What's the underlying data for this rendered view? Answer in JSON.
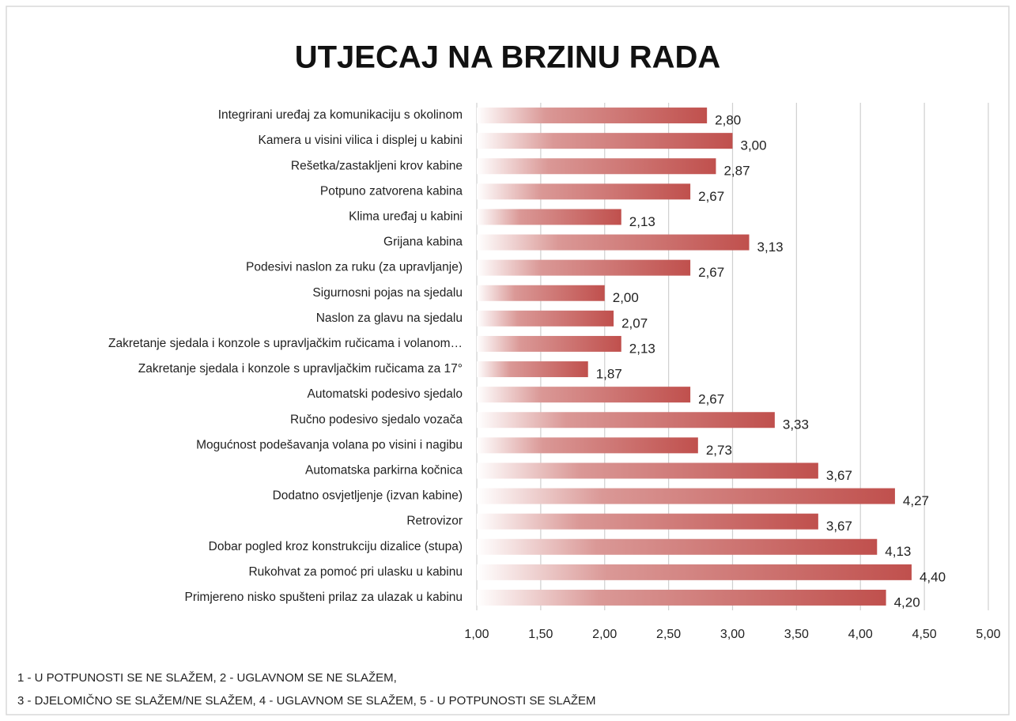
{
  "chart_data": {
    "type": "bar",
    "orientation": "horizontal",
    "title": "UTJECAJ NA BRZINU RADA",
    "categories": [
      "Integrirani uređaj za komunikaciju s okolinom",
      "Kamera u visini vilica i displej u kabini",
      "Rešetka/zastakljeni krov kabine",
      "Potpuno zatvorena kabina",
      "Klima uređaj u kabini",
      "Grijana kabina",
      "Podesivi naslon za ruku (za upravljanje)",
      "Sigurnosni pojas na sjedalu",
      "Naslon za glavu na sjedalu",
      "Zakretanje sjedala i konzole s upravljačkim ručicama i volanom…",
      "Zakretanje sjedala i konzole s upravljačkim ručicama za 17°",
      "Automatski podesivo sjedalo",
      "Ručno podesivo sjedalo vozača",
      "Mogućnost podešavanja volana po visini i nagibu",
      "Automatska parkirna kočnica",
      "Dodatno osvjetljenje (izvan kabine)",
      "Retrovizor",
      "Dobar pogled kroz konstrukciju dizalice (stupa)",
      "Rukohvat za pomoć pri ulasku u kabinu",
      "Primjereno nisko spušteni prilaz za ulazak u kabinu"
    ],
    "values": [
      2.8,
      3.0,
      2.87,
      2.67,
      2.13,
      3.13,
      2.67,
      2.0,
      2.07,
      2.13,
      1.87,
      2.67,
      3.33,
      2.73,
      3.67,
      4.27,
      3.67,
      4.13,
      4.4,
      4.2
    ],
    "value_labels": [
      "2,80",
      "3,00",
      "2,87",
      "2,67",
      "2,13",
      "3,13",
      "2,67",
      "2,00",
      "2,07",
      "2,13",
      "1,87",
      "2,67",
      "3,33",
      "2,73",
      "3,67",
      "4,27",
      "3,67",
      "4,13",
      "4,40",
      "4,20"
    ],
    "color": "#c0504d",
    "xlim": [
      1,
      5
    ],
    "xticks": [
      {
        "value": 1,
        "label": "1,00"
      },
      {
        "value": 1.5,
        "label": "1,50"
      },
      {
        "value": 2,
        "label": "2,00"
      },
      {
        "value": 2.5,
        "label": "2,50"
      },
      {
        "value": 3,
        "label": "3,00"
      },
      {
        "value": 3.5,
        "label": "3,50"
      },
      {
        "value": 4,
        "label": "4,00"
      },
      {
        "value": 4.5,
        "label": "4,50"
      },
      {
        "value": 5,
        "label": "5,00"
      }
    ],
    "grid": true,
    "notes": [
      "1 - U POTPUNOSTI SE NE SLAŽEM, 2 - UGLAVNOM SE NE SLAŽEM,",
      "3 - DJELOMIČNO SE SLAŽEM/NE SLAŽEM, 4 - UGLAVNOM SE SLAŽEM, 5 - U POTPUNOSTI SE SLAŽEM"
    ]
  }
}
